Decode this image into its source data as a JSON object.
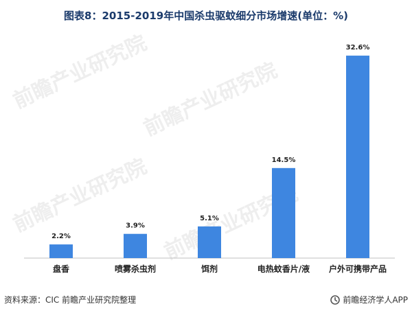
{
  "title": "图表8：2015-2019年中国杀虫驱蚊细分市场增速(单位：%)",
  "footer": {
    "source": "资料来源：CIC 前瞻产业研究院整理",
    "brand": "前瞻经济学人APP"
  },
  "watermark_text": "前瞻产业研究院",
  "colors": {
    "bar": "#3e86e0",
    "title": "#1a3a6b"
  },
  "chart_data": {
    "type": "bar",
    "categories": [
      "盘香",
      "喷雾杀虫剂",
      "饵剂",
      "电热蚊香片/液",
      "户外可携带产品"
    ],
    "values": [
      2.2,
      3.9,
      5.1,
      14.5,
      32.6
    ],
    "value_labels": [
      "2.2%",
      "3.9%",
      "5.1%",
      "14.5%",
      "32.6%"
    ],
    "xlabel": "",
    "ylabel": "",
    "ylim": [
      0,
      35
    ],
    "grid": false,
    "legend": "none"
  }
}
